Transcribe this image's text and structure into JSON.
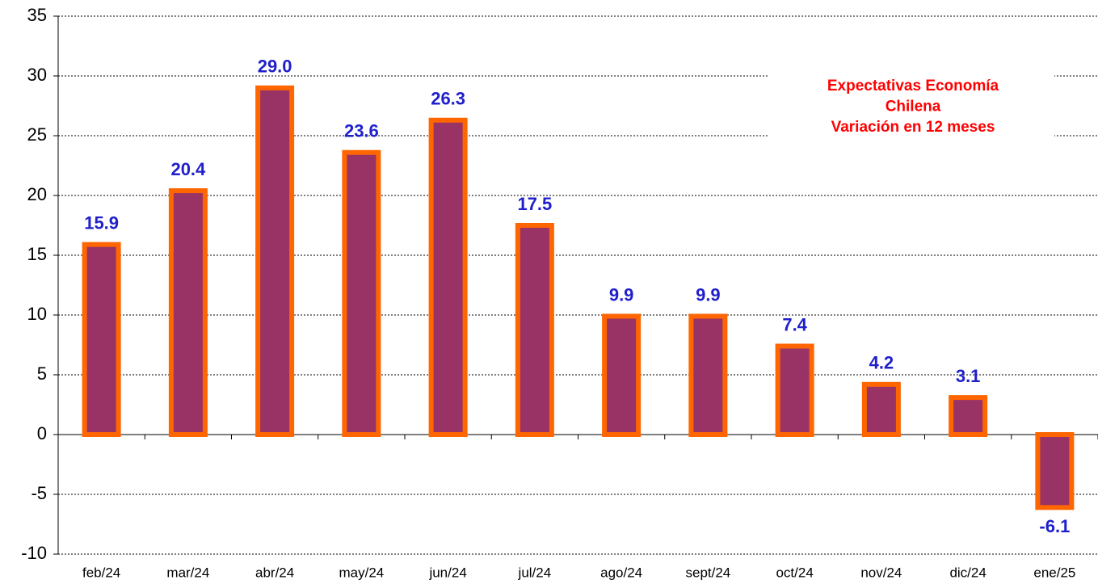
{
  "chart_data": {
    "type": "bar",
    "title": [
      "Expectativas Economía",
      "Chilena",
      "Variación  en 12 meses"
    ],
    "categories": [
      "feb/24",
      "mar/24",
      "abr/24",
      "may/24",
      "jun/24",
      "jul/24",
      "ago/24",
      "sept/24",
      "oct/24",
      "nov/24",
      "dic/24",
      "ene/25"
    ],
    "values": [
      15.9,
      20.4,
      29.0,
      23.6,
      26.3,
      17.5,
      9.9,
      9.9,
      7.4,
      4.2,
      3.1,
      -6.1
    ],
    "value_labels": [
      "15.9",
      "20.4",
      "29.0",
      "23.6",
      "26.3",
      "17.5",
      "9.9",
      "9.9",
      "7.4",
      "4.2",
      "3.1",
      "-6.1"
    ],
    "color": "#993366",
    "edge_color": "#ff6600",
    "label_color": "#1f1fcc",
    "ylim": [
      -10,
      35
    ],
    "yticks": [
      -10,
      -5,
      0,
      5,
      10,
      15,
      20,
      25,
      30,
      35
    ],
    "grid": true
  }
}
